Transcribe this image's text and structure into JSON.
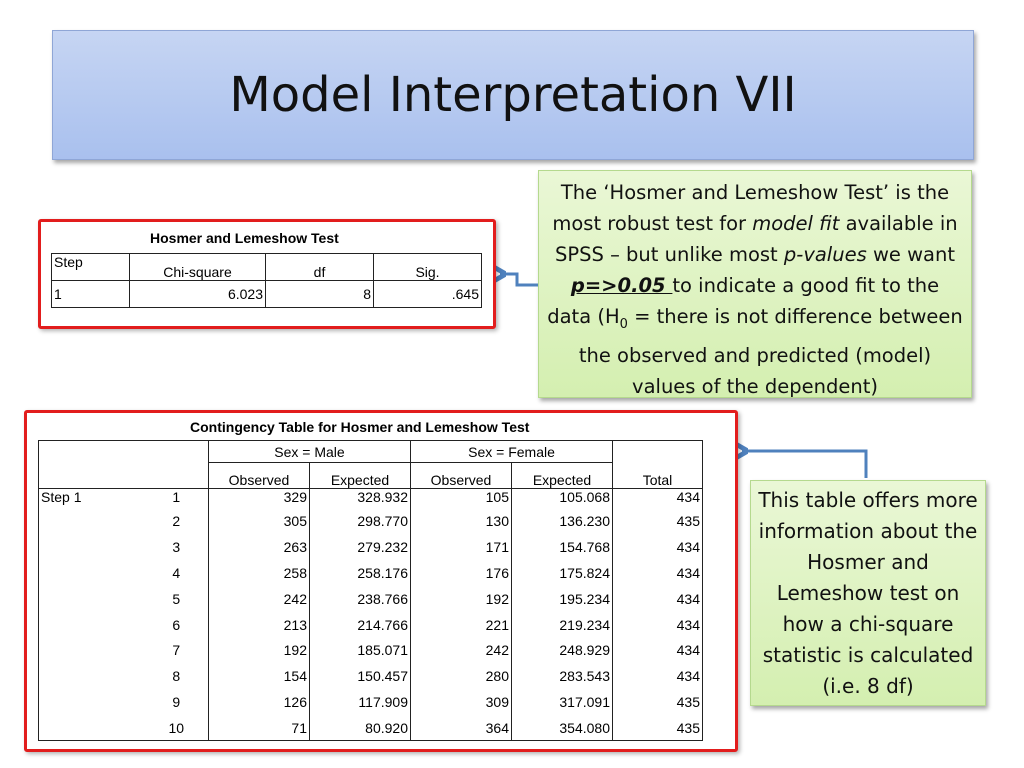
{
  "slide_title": "Model Interpretation VII",
  "note_top": {
    "part1": "The ‘Hosmer and Lemeshow Test’ is the most robust test for ",
    "model_fit": "model fit",
    "part2": " available in SPSS – but unlike most ",
    "p_values": "p-values",
    "part3": " we want ",
    "threshold": "p=>0.05 ",
    "part4": "to indicate a good fit to the data (H",
    "sub": "0",
    "part5": " = there is not difference between the observed and predicted (model) values of the dependent)"
  },
  "note_bottom": {
    "text": "This table offers more information about the Hosmer and Lemeshow test on how a chi-square statistic is calculated (i.e. 8 df)"
  },
  "hl_test": {
    "title": "Hosmer and Lemeshow Test",
    "headers": [
      "Step",
      "Chi-square",
      "df",
      "Sig."
    ],
    "row": [
      "1",
      "6.023",
      "8",
      ".645"
    ]
  },
  "contingency": {
    "title": "Contingency Table for Hosmer and Lemeshow Test",
    "group_male": "Sex = Male",
    "group_female": "Sex = Female",
    "sub_headers": [
      "Observed",
      "Expected",
      "Observed",
      "Expected"
    ],
    "total_label": "Total",
    "step_label": "Step 1",
    "rows": [
      [
        "1",
        "329",
        "328.932",
        "105",
        "105.068",
        "434"
      ],
      [
        "2",
        "305",
        "298.770",
        "130",
        "136.230",
        "435"
      ],
      [
        "3",
        "263",
        "279.232",
        "171",
        "154.768",
        "434"
      ],
      [
        "4",
        "258",
        "258.176",
        "176",
        "175.824",
        "434"
      ],
      [
        "5",
        "242",
        "238.766",
        "192",
        "195.234",
        "434"
      ],
      [
        "6",
        "213",
        "214.766",
        "221",
        "219.234",
        "434"
      ],
      [
        "7",
        "192",
        "185.071",
        "242",
        "248.929",
        "434"
      ],
      [
        "8",
        "154",
        "150.457",
        "280",
        "283.543",
        "434"
      ],
      [
        "9",
        "126",
        "117.909",
        "309",
        "317.091",
        "435"
      ],
      [
        "10",
        "71",
        "80.920",
        "364",
        "354.080",
        "435"
      ]
    ]
  },
  "colors": {
    "highlight_border": "#e21d1d",
    "arrow": "#4f81bd",
    "note_fill": "#d4efb0",
    "title_fill": "#a9c0ee"
  }
}
